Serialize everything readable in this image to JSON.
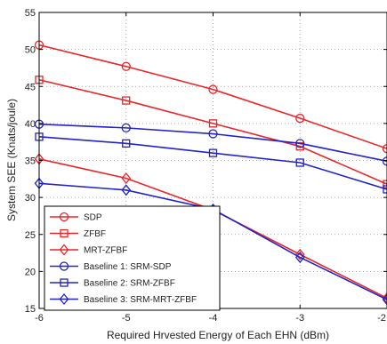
{
  "chart_data": {
    "type": "line",
    "xlabel": "Required Hrvested Energy of Each EHN (dBm)",
    "ylabel": "System SEE (Knats/joule)",
    "xlim": [
      -6,
      -2
    ],
    "ylim": [
      15,
      55
    ],
    "xticks": [
      -6,
      -5,
      -4,
      -3,
      -2
    ],
    "yticks": [
      15,
      20,
      25,
      30,
      35,
      40,
      45,
      50,
      55
    ],
    "xtick_labels": [
      "-6",
      "-5",
      "-4",
      "-3",
      "-2"
    ],
    "ytick_labels": [
      "15",
      "20",
      "25",
      "30",
      "35",
      "40",
      "45",
      "50",
      "55"
    ],
    "grid": "dotted",
    "legend_position": "lower-left",
    "x": [
      -6,
      -5,
      -4,
      -3,
      -2
    ],
    "series": [
      {
        "name": "SDP",
        "color": "#e8262a",
        "marker": "circle",
        "values": [
          50.6,
          47.7,
          44.6,
          40.7,
          36.6
        ]
      },
      {
        "name": "ZFBF",
        "color": "#e8262a",
        "marker": "square",
        "values": [
          45.9,
          43.1,
          40.0,
          36.9,
          31.8
        ]
      },
      {
        "name": "MRT-ZFBF",
        "color": "#e8262a",
        "marker": "diamond",
        "values": [
          35.2,
          32.6,
          28.3,
          22.3,
          16.4
        ]
      },
      {
        "name": "Baseline 1: SRM-SDP",
        "color": "#2323c8",
        "marker": "circle",
        "values": [
          39.9,
          39.4,
          38.6,
          37.3,
          34.9
        ]
      },
      {
        "name": "Baseline 2: SRM-ZFBF",
        "color": "#2323c8",
        "marker": "square",
        "values": [
          38.2,
          37.3,
          36.0,
          34.7,
          31.1
        ]
      },
      {
        "name": "Baseline 3: SRM-MRT-ZFBF",
        "color": "#2323c8",
        "marker": "diamond",
        "values": [
          31.9,
          31.0,
          28.4,
          21.9,
          16.2
        ]
      }
    ]
  }
}
